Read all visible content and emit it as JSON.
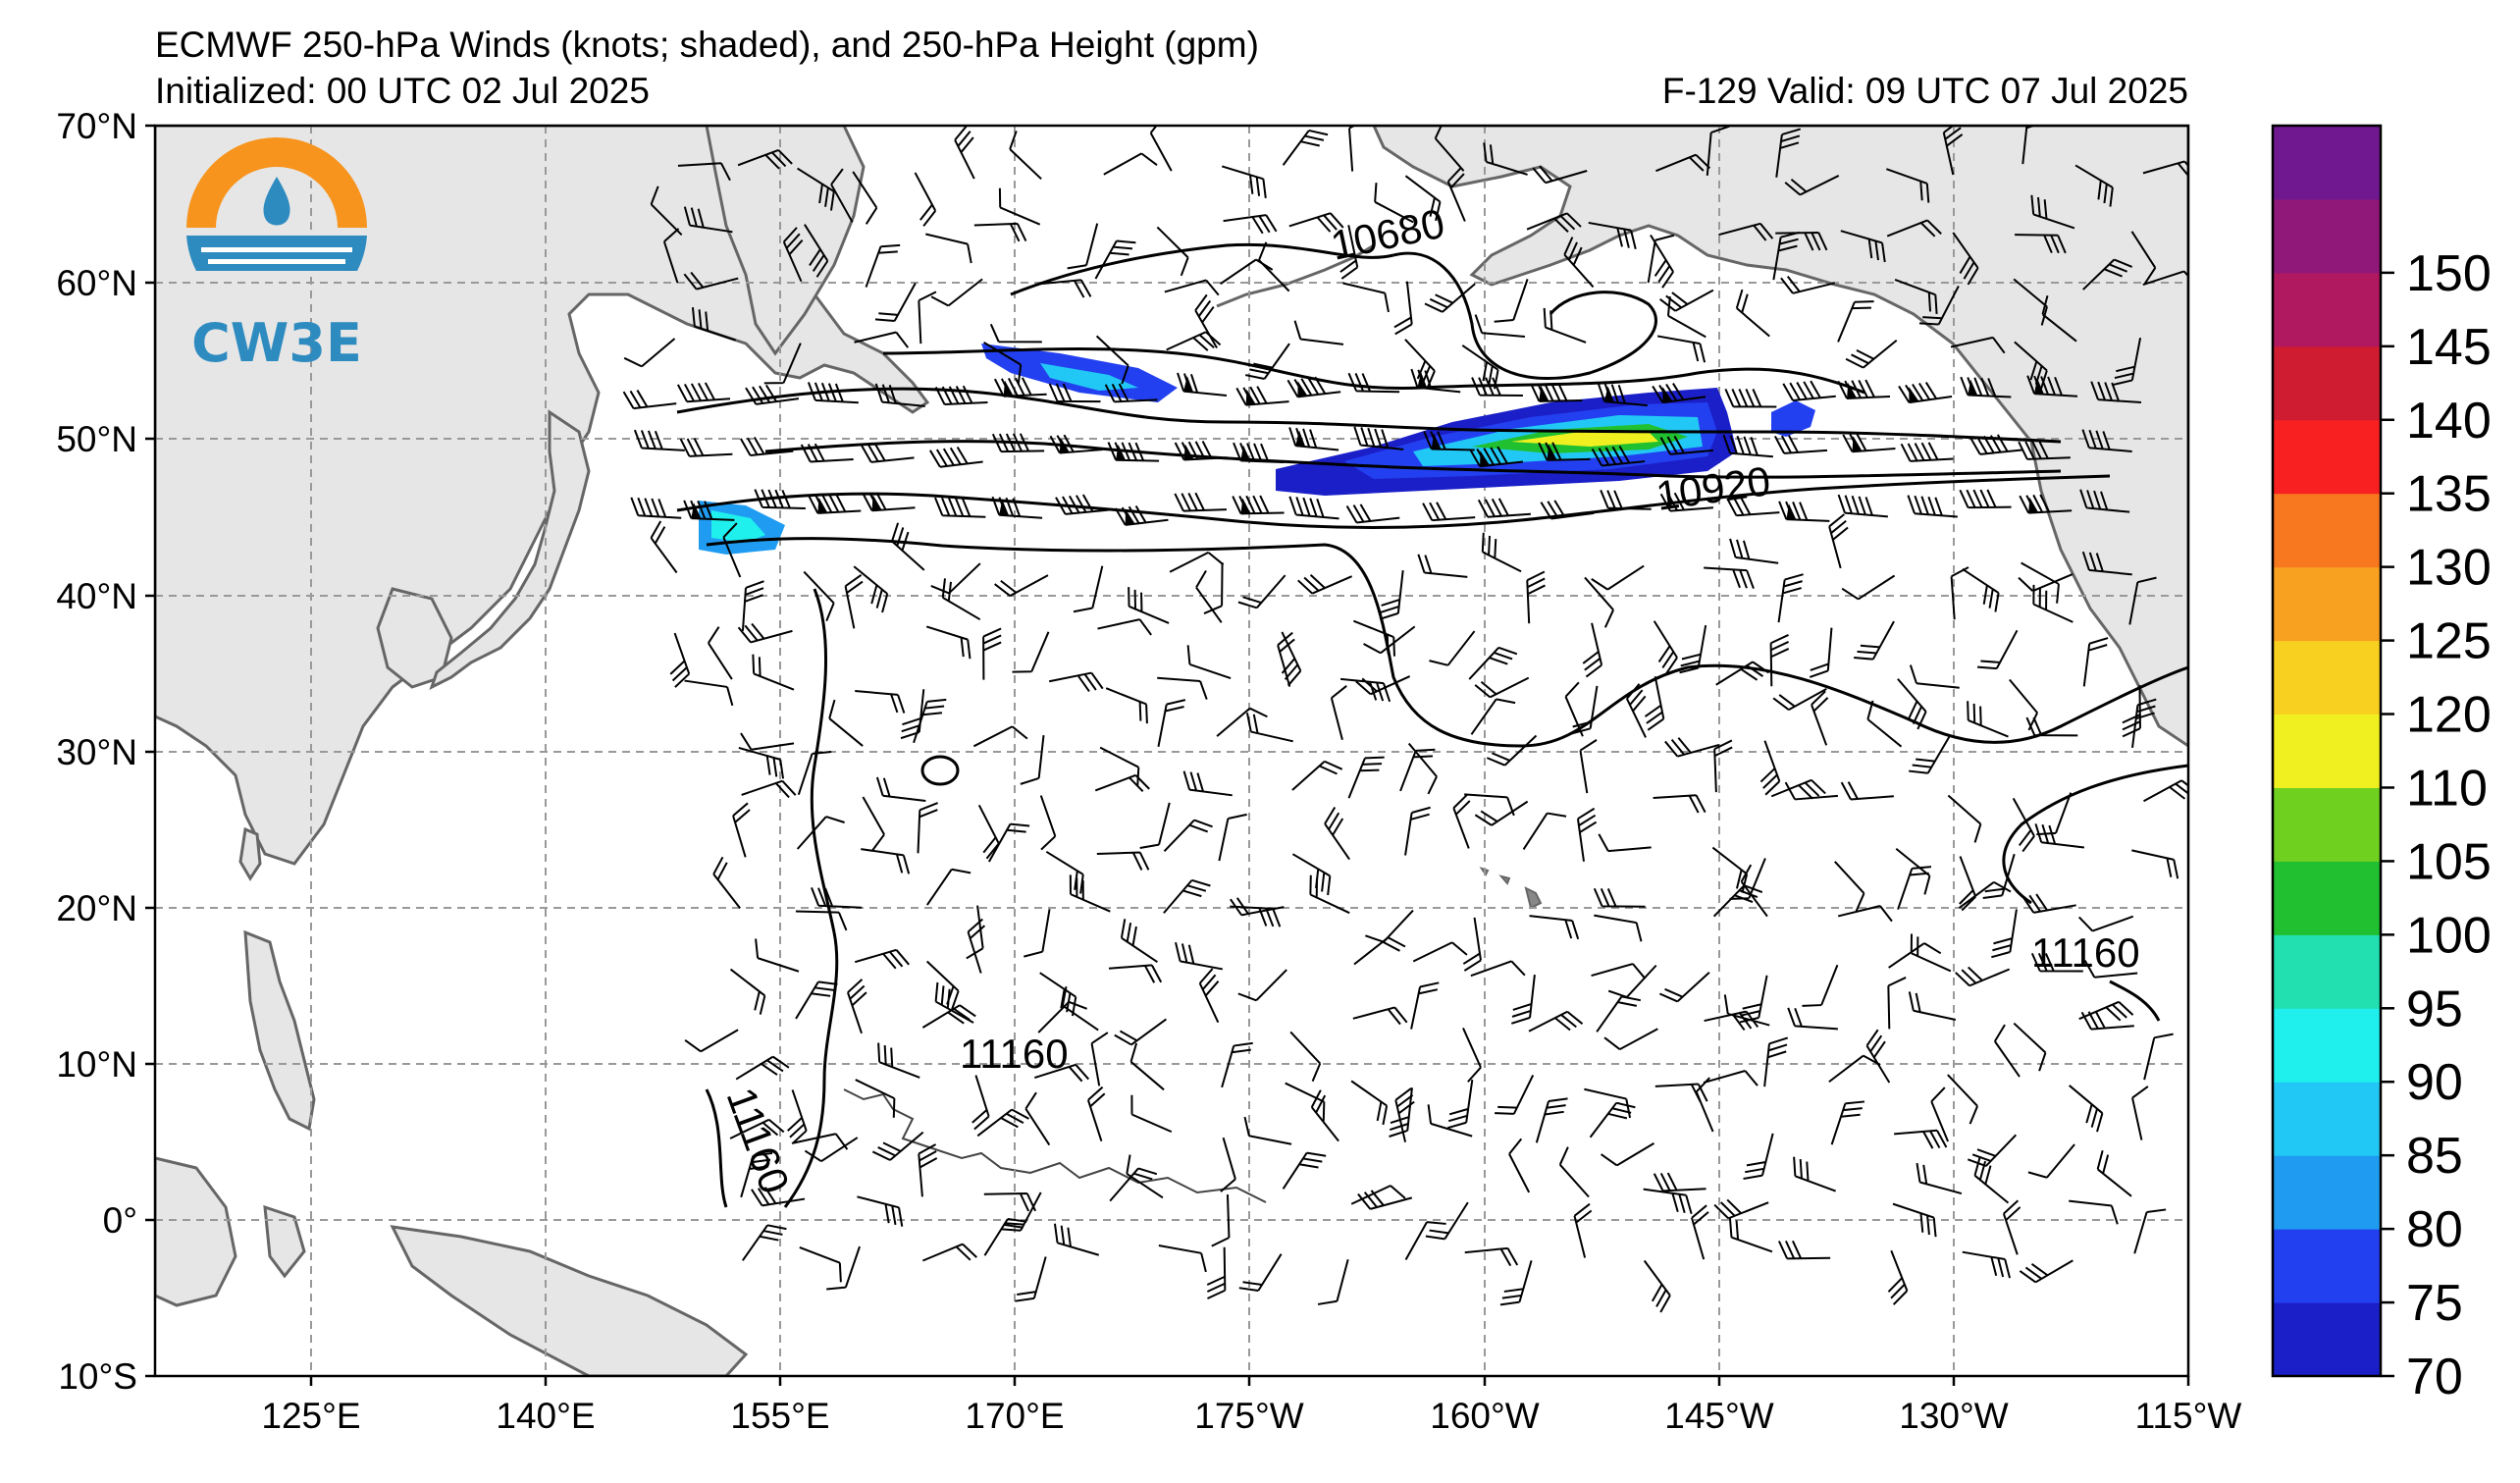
{
  "title": {
    "line1": "ECMWF 250-hPa Winds (knots; shaded), and 250-hPa Height (gpm)",
    "initialized": "Initialized: 00 UTC 02 Jul 2025",
    "valid": "F-129  Valid: 09 UTC 07 Jul 2025"
  },
  "logo": {
    "text": "CW3E",
    "colors": {
      "orange": "#f7941d",
      "blue": "#2e8bc0"
    }
  },
  "axes": {
    "lat_labels": [
      "70°N",
      "60°N",
      "50°N",
      "40°N",
      "30°N",
      "20°N",
      "10°N",
      "0°",
      "10°S"
    ],
    "lon_labels": [
      "125°E",
      "140°E",
      "155°E",
      "170°E",
      "175°W",
      "160°W",
      "145°W",
      "130°W",
      "115°W"
    ]
  },
  "colorbar": {
    "ticks": [
      "70",
      "75",
      "80",
      "85",
      "90",
      "95",
      "100",
      "105",
      "110",
      "120",
      "125",
      "130",
      "135",
      "140",
      "145",
      "150"
    ],
    "colors": [
      "#1b1fc8",
      "#2340f0",
      "#1f9cf2",
      "#22c8f5",
      "#1ff0ee",
      "#22e0b0",
      "#20c030",
      "#70d020",
      "#f0f020",
      "#f8d020",
      "#f8a020",
      "#f87820",
      "#f82020",
      "#d01c30",
      "#b01860",
      "#901878",
      "#701890"
    ]
  },
  "contours": {
    "labels": [
      "10680",
      "10920",
      "11160",
      "11160",
      "11160"
    ]
  },
  "colors": {
    "land": "#e6e6e6",
    "coast": "#666666",
    "ocean": "#ffffff",
    "grid": "#999999"
  }
}
